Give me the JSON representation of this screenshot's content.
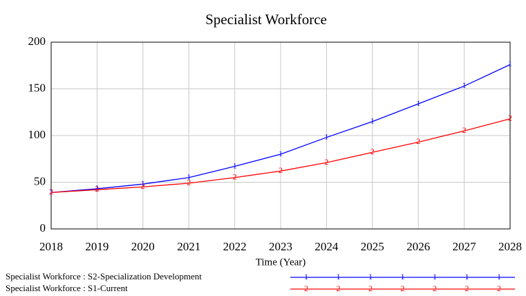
{
  "chart_data": {
    "type": "line",
    "title": "Specialist Workforce",
    "x_label": "Time (Year)",
    "x": [
      2018,
      2019,
      2020,
      2021,
      2022,
      2023,
      2024,
      2025,
      2026,
      2027,
      2028
    ],
    "xlim": [
      2018,
      2028
    ],
    "xticks": [
      2018,
      2019,
      2020,
      2021,
      2022,
      2023,
      2024,
      2025,
      2026,
      2027,
      2028
    ],
    "ylim": [
      0,
      200
    ],
    "yticks": [
      0,
      50,
      100,
      150,
      200
    ],
    "grid": true,
    "series": [
      {
        "name": "Specialist Workforce : S2-Specialization Development",
        "color": "#0000ff",
        "marker": "1",
        "values": [
          39,
          43,
          48,
          55,
          67,
          80,
          98,
          115,
          134,
          153,
          176
        ]
      },
      {
        "name": "Specialist Workforce : S1-Current",
        "color": "#ff0000",
        "marker": "2",
        "values": [
          39,
          42,
          45,
          49,
          55,
          62,
          71,
          82,
          93,
          105,
          118
        ]
      }
    ]
  }
}
